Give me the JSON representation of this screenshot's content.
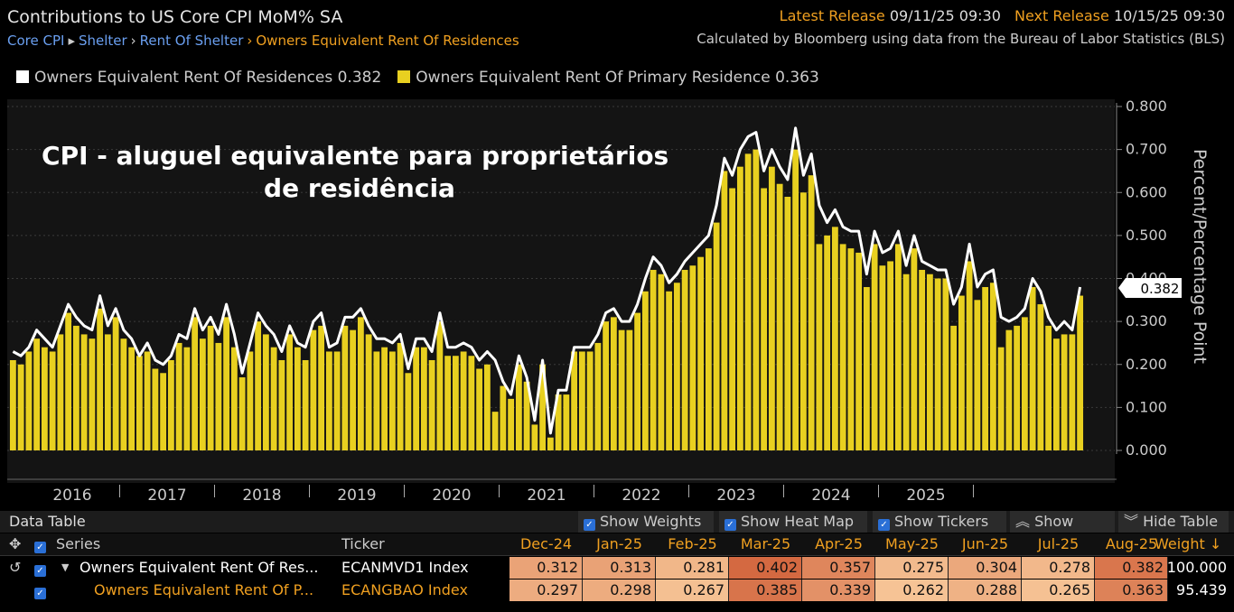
{
  "header": {
    "title": "Contributions to US Core CPI MoM% SA",
    "breadcrumb": [
      "Core CPI",
      "Shelter",
      "Rent Of Shelter",
      "Owners Equivalent Rent Of Residences"
    ],
    "latest_release_label": "Latest Release",
    "latest_release_value": "09/11/25 09:30",
    "next_release_label": "Next Release",
    "next_release_value": "10/15/25 09:30",
    "source": "Calculated by Bloomberg using data from the Bureau of Labor Statistics (BLS)"
  },
  "legend": [
    {
      "label": "Owners Equivalent Rent Of Residences 0.382",
      "color": "#ffffff"
    },
    {
      "label": "Owners Equivalent Rent Of Primary Residence 0.363",
      "color": "#e8d020"
    }
  ],
  "chart_data": {
    "type": "bar",
    "annotation": "CPI - aluguel equivalente para proprietários de residência",
    "ylabel": "Percent/Percentage Point",
    "ylim": [
      0,
      0.8
    ],
    "yticks": [
      "0.000",
      "0.100",
      "0.200",
      "0.300",
      "0.400",
      "0.500",
      "0.600",
      "0.700",
      "0.800"
    ],
    "xticks": [
      "2016",
      "2017",
      "2018",
      "2019",
      "2020",
      "2021",
      "2022",
      "2023",
      "2024",
      "2025"
    ],
    "last_value_label": "0.382",
    "grid": true,
    "series": [
      {
        "name": "Owners Equivalent Rent Of Residences",
        "style": "line",
        "color": "#ffffff",
        "values": [
          0.23,
          0.22,
          0.24,
          0.28,
          0.26,
          0.24,
          0.29,
          0.34,
          0.31,
          0.29,
          0.28,
          0.36,
          0.29,
          0.33,
          0.28,
          0.26,
          0.22,
          0.25,
          0.21,
          0.2,
          0.22,
          0.27,
          0.26,
          0.33,
          0.28,
          0.31,
          0.27,
          0.34,
          0.27,
          0.18,
          0.25,
          0.32,
          0.29,
          0.27,
          0.23,
          0.29,
          0.25,
          0.24,
          0.3,
          0.32,
          0.24,
          0.25,
          0.31,
          0.31,
          0.33,
          0.29,
          0.26,
          0.26,
          0.25,
          0.27,
          0.19,
          0.26,
          0.26,
          0.23,
          0.32,
          0.24,
          0.24,
          0.25,
          0.24,
          0.21,
          0.23,
          0.21,
          0.16,
          0.13,
          0.22,
          0.17,
          0.07,
          0.21,
          0.04,
          0.14,
          0.14,
          0.24,
          0.24,
          0.24,
          0.27,
          0.32,
          0.33,
          0.3,
          0.3,
          0.34,
          0.4,
          0.45,
          0.43,
          0.39,
          0.41,
          0.44,
          0.46,
          0.48,
          0.5,
          0.57,
          0.68,
          0.64,
          0.7,
          0.73,
          0.74,
          0.65,
          0.7,
          0.66,
          0.63,
          0.75,
          0.64,
          0.69,
          0.57,
          0.53,
          0.56,
          0.52,
          0.51,
          0.51,
          0.41,
          0.51,
          0.46,
          0.47,
          0.51,
          0.43,
          0.5,
          0.44,
          0.43,
          0.42,
          0.42,
          0.34,
          0.38,
          0.48,
          0.38,
          0.41,
          0.42,
          0.31,
          0.3,
          0.31,
          0.33,
          0.4,
          0.37,
          0.31,
          0.28,
          0.3,
          0.28,
          0.38
        ]
      },
      {
        "name": "Owners Equivalent Rent Of Primary Residence",
        "style": "bar",
        "color": "#e8d020",
        "values": [
          0.21,
          0.2,
          0.23,
          0.26,
          0.24,
          0.23,
          0.27,
          0.32,
          0.29,
          0.27,
          0.26,
          0.33,
          0.27,
          0.31,
          0.26,
          0.24,
          0.22,
          0.23,
          0.19,
          0.18,
          0.21,
          0.25,
          0.24,
          0.31,
          0.26,
          0.29,
          0.25,
          0.31,
          0.24,
          0.17,
          0.23,
          0.3,
          0.27,
          0.24,
          0.21,
          0.27,
          0.24,
          0.21,
          0.28,
          0.29,
          0.23,
          0.23,
          0.29,
          0.28,
          0.31,
          0.27,
          0.23,
          0.24,
          0.23,
          0.25,
          0.18,
          0.24,
          0.24,
          0.21,
          0.3,
          0.22,
          0.22,
          0.23,
          0.22,
          0.19,
          0.2,
          0.09,
          0.15,
          0.12,
          0.2,
          0.16,
          0.06,
          0.2,
          0.03,
          0.13,
          0.13,
          0.23,
          0.23,
          0.23,
          0.25,
          0.3,
          0.31,
          0.28,
          0.28,
          0.32,
          0.37,
          0.42,
          0.41,
          0.37,
          0.39,
          0.42,
          0.43,
          0.45,
          0.47,
          0.53,
          0.65,
          0.61,
          0.66,
          0.69,
          0.7,
          0.61,
          0.66,
          0.62,
          0.59,
          0.7,
          0.6,
          0.64,
          0.48,
          0.5,
          0.52,
          0.48,
          0.47,
          0.46,
          0.38,
          0.48,
          0.43,
          0.44,
          0.48,
          0.41,
          0.47,
          0.42,
          0.41,
          0.4,
          0.4,
          0.29,
          0.36,
          0.44,
          0.35,
          0.38,
          0.39,
          0.24,
          0.28,
          0.29,
          0.31,
          0.38,
          0.34,
          0.29,
          0.26,
          0.27,
          0.27,
          0.36
        ]
      }
    ]
  },
  "data_table": {
    "title": "Data Table",
    "buttons": [
      "Show Weights",
      "Show Heat Map",
      "Show Tickers",
      "Show More",
      "Hide Table"
    ],
    "headers": {
      "series": "Series",
      "ticker": "Ticker",
      "weight": "Weight"
    },
    "months": [
      "Dec-24",
      "Jan-25",
      "Feb-25",
      "Mar-25",
      "Apr-25",
      "May-25",
      "Jun-25",
      "Jul-25",
      "Aug-25"
    ],
    "rows": [
      {
        "series": "Owners Equivalent Rent Of Res...",
        "ticker": "ECANMVD1 Index",
        "values": [
          "0.312",
          "0.313",
          "0.281",
          "0.402",
          "0.357",
          "0.275",
          "0.304",
          "0.278",
          "0.382"
        ],
        "weight": "100.000"
      },
      {
        "series": "Owners Equivalent Rent Of P...",
        "ticker": "ECANGBAO Index",
        "values": [
          "0.297",
          "0.298",
          "0.267",
          "0.385",
          "0.339",
          "0.262",
          "0.288",
          "0.265",
          "0.363"
        ],
        "weight": "95.439"
      }
    ]
  }
}
